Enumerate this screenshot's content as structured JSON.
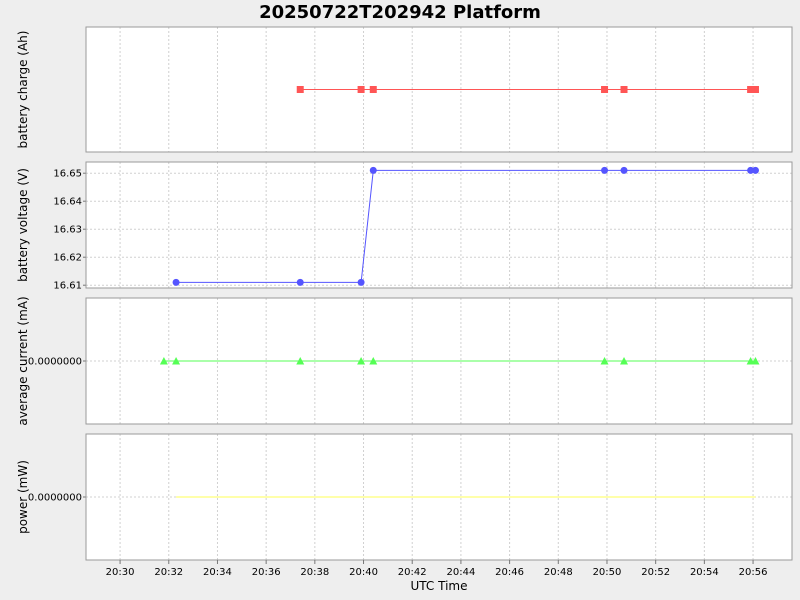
{
  "chart_data": {
    "type": "line",
    "title": "20250722T202942 Platform",
    "xlabel": "UTC Time",
    "x_unit": "minutes after 20:00 UTC",
    "xlim": [
      28.6,
      57.6
    ],
    "x_ticks": [
      "20:30",
      "20:32",
      "20:34",
      "20:36",
      "20:38",
      "20:40",
      "20:42",
      "20:44",
      "20:46",
      "20:48",
      "20:50",
      "20:52",
      "20:54",
      "20:56"
    ],
    "grid": true,
    "panels": [
      {
        "ylabel": "battery charge (Ah)",
        "ylim": [
          0,
          1
        ],
        "y_ticks": [],
        "series": [
          {
            "color": "#ff5555",
            "marker": "square",
            "x": [
              37.4,
              39.9,
              40.4,
              49.9,
              50.7,
              55.9,
              56.1
            ],
            "y": [
              0.5,
              0.5,
              0.5,
              0.5,
              0.5,
              0.5,
              0.5
            ]
          }
        ]
      },
      {
        "ylabel": "battery voltage (V)",
        "ylim": [
          16.609,
          16.654
        ],
        "y_ticks": [
          "16.61",
          "16.62",
          "16.63",
          "16.64",
          "16.65"
        ],
        "series": [
          {
            "color": "#5555ff",
            "marker": "circle",
            "x": [
              32.3,
              37.4,
              39.9,
              40.4,
              49.9,
              50.7,
              55.9,
              56.1
            ],
            "y": [
              16.611,
              16.611,
              16.611,
              16.651,
              16.651,
              16.651,
              16.651,
              16.651
            ]
          }
        ]
      },
      {
        "ylabel": "average current (mA)",
        "ylim": [
          -1,
          1
        ],
        "y_ticks": [
          "0.0000000"
        ],
        "series": [
          {
            "color": "#55ff55",
            "marker": "triangle",
            "x": [
              31.8,
              32.3,
              37.4,
              39.9,
              40.4,
              49.9,
              50.7,
              55.9,
              56.1
            ],
            "y": [
              0,
              0,
              0,
              0,
              0,
              0,
              0,
              0,
              0
            ]
          }
        ]
      },
      {
        "ylabel": "power (mW)",
        "ylim": [
          -1,
          1
        ],
        "y_ticks": [
          "0.0000000"
        ],
        "series": [
          {
            "color": "#ffff55",
            "marker": "none",
            "x": [
              32.3,
              56.1
            ],
            "y": [
              0,
              0
            ]
          }
        ]
      }
    ]
  }
}
